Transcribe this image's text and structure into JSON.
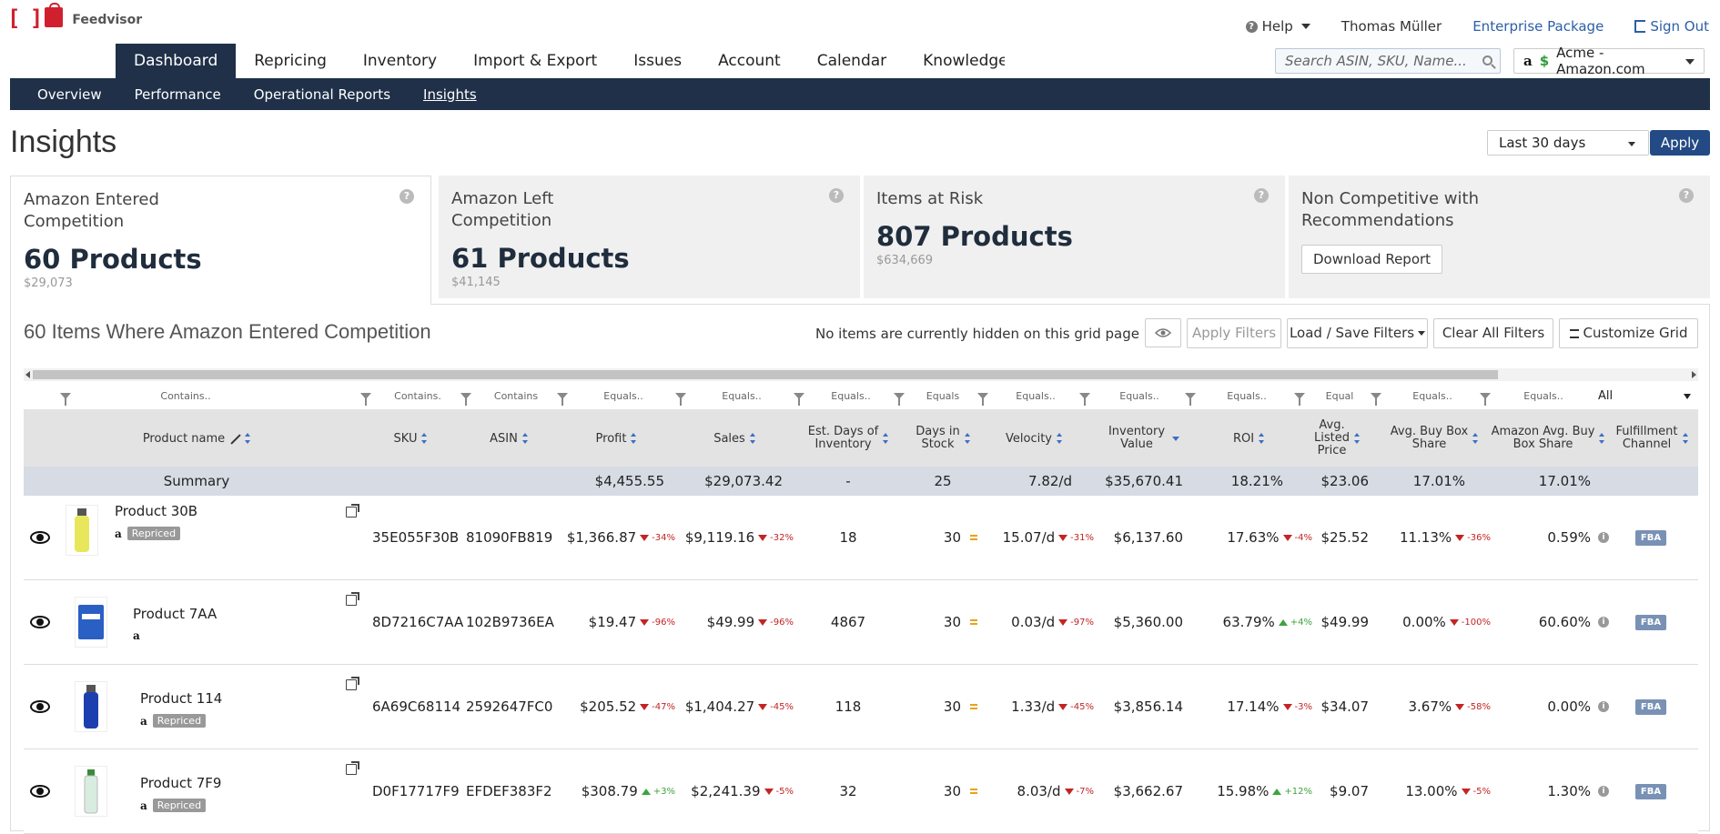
{
  "header": {
    "brand": "Feedvisor",
    "help_label": "Help",
    "user_name": "Thomas Müller",
    "package_label": "Enterprise Package",
    "signout_label": "Sign Out"
  },
  "nav": {
    "tabs": [
      "Dashboard",
      "Repricing",
      "Inventory",
      "Import & Export",
      "Issues",
      "Account",
      "Calendar",
      "Knowledge Base"
    ],
    "active_tab": "Dashboard",
    "search_placeholder": "Search ASIN, SKU, Name...",
    "account_label": "Acme - Amazon.com"
  },
  "subnav": {
    "items": [
      "Overview",
      "Performance",
      "Operational Reports",
      "Insights"
    ],
    "active": "Insights"
  },
  "page": {
    "title": "Insights",
    "period": "Last 30 days",
    "apply_label": "Apply"
  },
  "cards": [
    {
      "title": "Amazon Entered Competition",
      "count": "60 Products",
      "value": "$29,073"
    },
    {
      "title": "Amazon Left Competition",
      "count": "61 Products",
      "value": "$41,145"
    },
    {
      "title": "Items at Risk",
      "count": "807 Products",
      "value": "$634,669"
    },
    {
      "title": "Non Competitive with Recommendations",
      "button": "Download Report"
    }
  ],
  "grid": {
    "title": "60 Items Where Amazon Entered Competition",
    "hidden_note": "No items are currently hidden on this grid page",
    "apply_filters": "Apply Filters",
    "load_save_filters": "Load / Save Filters",
    "clear_filters": "Clear All Filters",
    "customize_grid": "Customize Grid",
    "filters": [
      "Contains..",
      "Contains.",
      "Contains",
      "Equals..",
      "Equals..",
      "Equals..",
      "Equals",
      "Equals..",
      "Equals..",
      "Equals..",
      "Equal",
      "Equals..",
      "Equals..",
      "All"
    ],
    "columns": {
      "product": "Product name",
      "sku": "SKU",
      "asin": "ASIN",
      "profit": "Profit",
      "sales": "Sales",
      "est_days_1": "Est. Days of",
      "est_days_2": "Inventory",
      "days_stock_1": "Days in",
      "days_stock_2": "Stock",
      "velocity": "Velocity",
      "inv_value_1": "Inventory",
      "inv_value_2": "Value",
      "roi": "ROI",
      "avg_listed_1": "Avg.",
      "avg_listed_2": "Listed",
      "avg_listed_3": "Price",
      "buybox_1": "Avg. Buy Box",
      "buybox_2": "Share",
      "amz_buybox_1": "Amazon Avg. Buy",
      "amz_buybox_2": "Box Share",
      "fulfill_1": "Fulfillment",
      "fulfill_2": "Channel"
    },
    "summary": {
      "label": "Summary",
      "profit": "$4,455.55",
      "sales": "$29,073.42",
      "est_days": "-",
      "days_stock": "25",
      "velocity": "7.82/d",
      "inv_value": "$35,670.41",
      "roi": "18.21%",
      "avg_listed": "$23.06",
      "buybox": "17.01%",
      "amz_buybox": "17.01%"
    },
    "rows": [
      {
        "name": "Product 30B",
        "repriced": "Repriced",
        "sku": "35E055F30B",
        "asin": "81090FB819",
        "profit": "$1,366.87",
        "profit_chg": "-34%",
        "profit_dir": "down",
        "sales": "$9,119.16",
        "sales_chg": "-32%",
        "sales_dir": "down",
        "est_days": "18",
        "days_stock": "30",
        "velocity": "15.07/d",
        "velocity_chg": "-31%",
        "velocity_dir": "down",
        "inv_value": "$6,137.60",
        "roi": "17.63%",
        "roi_chg": "-4%",
        "roi_dir": "down",
        "avg_listed": "$25.52",
        "buybox": "11.13%",
        "buybox_chg": "-36%",
        "buybox_dir": "down",
        "amz_buybox": "0.59%",
        "fulfillment": "FBA"
      },
      {
        "name": "Product 7AA",
        "repriced": "",
        "sku": "8D7216C7AA",
        "asin": "102B9736EA",
        "profit": "$19.47",
        "profit_chg": "-96%",
        "profit_dir": "down",
        "sales": "$49.99",
        "sales_chg": "-96%",
        "sales_dir": "down",
        "est_days": "4867",
        "days_stock": "30",
        "velocity": "0.03/d",
        "velocity_chg": "-97%",
        "velocity_dir": "down",
        "inv_value": "$5,360.00",
        "roi": "63.79%",
        "roi_chg": "+4%",
        "roi_dir": "up",
        "avg_listed": "$49.99",
        "buybox": "0.00%",
        "buybox_chg": "-100%",
        "buybox_dir": "down",
        "amz_buybox": "60.60%",
        "fulfillment": "FBA"
      },
      {
        "name": "Product 114",
        "repriced": "Repriced",
        "sku": "6A69C68114",
        "asin": "2592647FC0",
        "profit": "$205.52",
        "profit_chg": "-47%",
        "profit_dir": "down",
        "sales": "$1,404.27",
        "sales_chg": "-45%",
        "sales_dir": "down",
        "est_days": "118",
        "days_stock": "30",
        "velocity": "1.33/d",
        "velocity_chg": "-45%",
        "velocity_dir": "down",
        "inv_value": "$3,856.14",
        "roi": "17.14%",
        "roi_chg": "-3%",
        "roi_dir": "down",
        "avg_listed": "$34.07",
        "buybox": "3.67%",
        "buybox_chg": "-58%",
        "buybox_dir": "down",
        "amz_buybox": "0.00%",
        "fulfillment": "FBA"
      },
      {
        "name": "Product 7F9",
        "repriced": "Repriced",
        "sku": "D0F17717F9",
        "asin": "EFDEF383F2",
        "profit": "$308.79",
        "profit_chg": "+3%",
        "profit_dir": "up",
        "sales": "$2,241.39",
        "sales_chg": "-5%",
        "sales_dir": "down",
        "est_days": "32",
        "days_stock": "30",
        "velocity": "8.03/d",
        "velocity_chg": "-7%",
        "velocity_dir": "down",
        "inv_value": "$3,662.67",
        "roi": "15.98%",
        "roi_chg": "+12%",
        "roi_dir": "up",
        "avg_listed": "$9.07",
        "buybox": "13.00%",
        "buybox_chg": "-5%",
        "buybox_dir": "down",
        "amz_buybox": "1.30%",
        "fulfillment": "FBA"
      }
    ]
  },
  "colors": {
    "nav_bg": "#1f3048",
    "accent_blue": "#234a84",
    "link_blue": "#2c5ea8",
    "down_red": "#c42424",
    "up_green": "#3da43d",
    "brand_red": "#d0202e"
  }
}
